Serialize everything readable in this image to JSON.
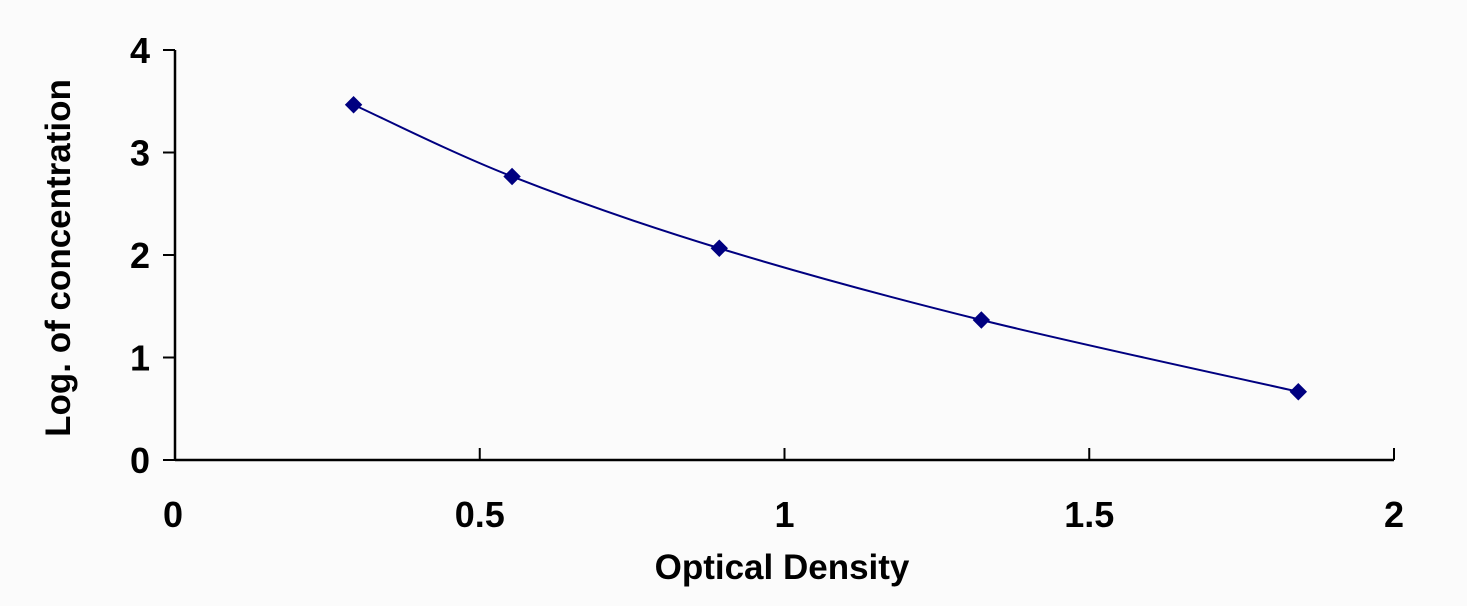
{
  "chart_data": {
    "type": "scatter",
    "title": "",
    "xlabel": "Optical Density",
    "ylabel": "Log. of concentration",
    "xlim": [
      0,
      2
    ],
    "ylim": [
      0,
      4
    ],
    "x_ticks": [
      "0",
      "0.5",
      "1",
      "1.5",
      "2"
    ],
    "y_ticks": [
      "0",
      "1",
      "2",
      "3",
      "4"
    ],
    "grid": false,
    "legend": "none",
    "series": [
      {
        "x": [
          0.293,
          0.553,
          0.893,
          1.323,
          1.843
        ],
        "y": [
          3.466,
          2.766,
          2.066,
          1.366,
          0.666
        ],
        "marker": "diamond",
        "line": "smooth",
        "color": "#000080"
      }
    ]
  }
}
